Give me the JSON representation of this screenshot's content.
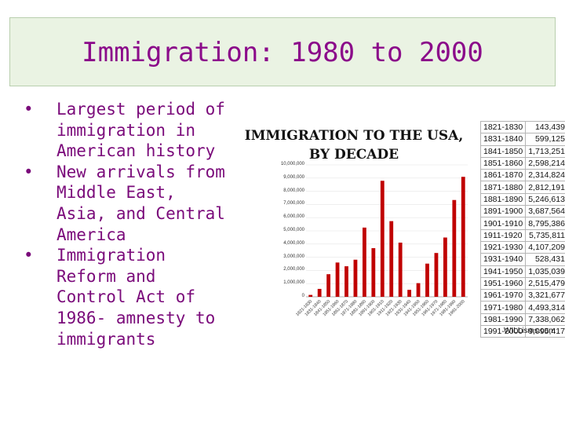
{
  "slide": {
    "title": "Immigration: 1980 to 2000",
    "bullets": [
      "Largest period of immigration in American history",
      "New arrivals from Middle East, Asia, and Central America",
      "Immigration Reform and Control Act of 1986- amnesty to immigrants"
    ],
    "bullet_symbol": "•"
  },
  "figure": {
    "title_line1": "IMMIGRATION TO THE USA,",
    "title_line2": "BY DECADE",
    "credit": "WILLisms.com",
    "table": [
      [
        "1821-1830",
        "143,439"
      ],
      [
        "1831-1840",
        "599,125"
      ],
      [
        "1841-1850",
        "1,713,251"
      ],
      [
        "1851-1860",
        "2,598,214"
      ],
      [
        "1861-1870",
        "2,314,824"
      ],
      [
        "1871-1880",
        "2,812,191"
      ],
      [
        "1881-1890",
        "5,246,613"
      ],
      [
        "1891-1900",
        "3,687,564"
      ],
      [
        "1901-1910",
        "8,795,386"
      ],
      [
        "1911-1920",
        "5,735,811"
      ],
      [
        "1921-1930",
        "4,107,209"
      ],
      [
        "1931-1940",
        "528,431"
      ],
      [
        "1941-1950",
        "1,035,039"
      ],
      [
        "1951-1960",
        "2,515,479"
      ],
      [
        "1961-1970",
        "3,321,677"
      ],
      [
        "1971-1980",
        "4,493,314"
      ],
      [
        "1981-1990",
        "7,338,062"
      ],
      [
        "1991-2000",
        "9,095,417"
      ]
    ]
  },
  "chart_data": {
    "type": "bar",
    "title": "IMMIGRATION TO THE USA, BY DECADE",
    "categories": [
      "1821-1830",
      "1831-1840",
      "1841-1850",
      "1851-1860",
      "1861-1870",
      "1871-1880",
      "1881-1890",
      "1891-1900",
      "1901-1910",
      "1911-1920",
      "1921-1930",
      "1931-1940",
      "1941-1950",
      "1951-1960",
      "1961-1970",
      "1971-1980",
      "1981-1990",
      "1991-2000"
    ],
    "values": [
      143439,
      599125,
      1713251,
      2598214,
      2314824,
      2812191,
      5246613,
      3687564,
      8795386,
      5735811,
      4107209,
      528431,
      1035039,
      2515479,
      3321677,
      4493314,
      7338062,
      9095417
    ],
    "yticks": [
      "10,000,000",
      "9,000,000",
      "8,000,000",
      "7,000,000",
      "6,000,000",
      "5,000,000",
      "4,000,000",
      "3,000,000",
      "2,000,000",
      "1,000,000",
      "0"
    ],
    "ylim": [
      0,
      10000000
    ],
    "bar_color": "#c00000",
    "grid": true
  }
}
